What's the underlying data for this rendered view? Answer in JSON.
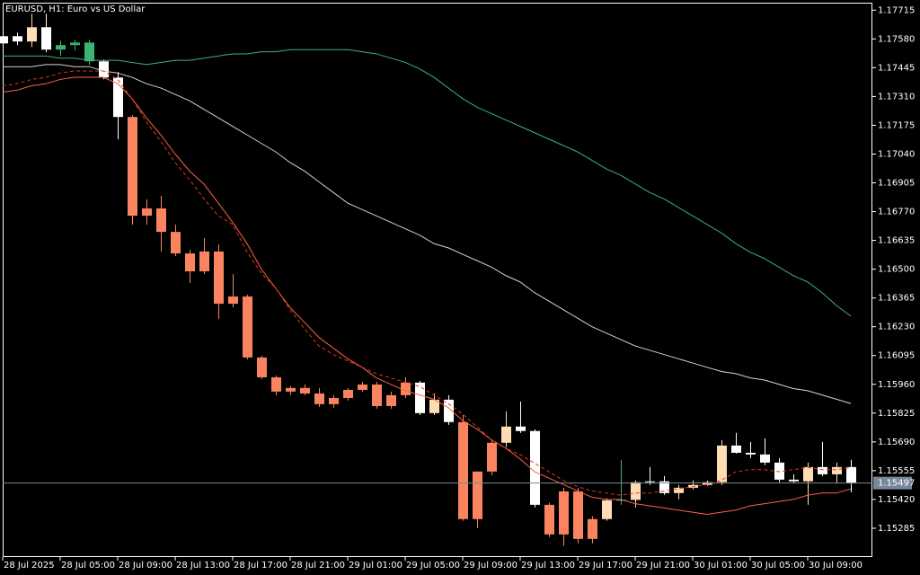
{
  "chart_data": {
    "type": "candlestick",
    "title": "EURUSD, H1:  Euro vs US Dollar",
    "categories": [
      "28 Jul 2025",
      null,
      null,
      null,
      "28 Jul 05:00",
      null,
      null,
      null,
      "28 Jul 09:00",
      null,
      null,
      null,
      "28 Jul 13:00",
      null,
      null,
      null,
      "28 Jul 17:00",
      null,
      null,
      null,
      "28 Jul 21:00",
      null,
      null,
      null,
      "29 Jul 01:00",
      null,
      null,
      null,
      "29 Jul 05:00",
      null,
      null,
      null,
      "29 Jul 09:00",
      null,
      null,
      null,
      "29 Jul 13:00",
      null,
      null,
      null,
      "29 Jul 17:00",
      null,
      null,
      null,
      "29 Jul 21:00",
      null,
      null,
      null,
      "30 Jul 01:00",
      null,
      null,
      null,
      "30 Jul 05:00",
      null,
      null,
      null,
      "30 Jul 09:00",
      null,
      null,
      null
    ],
    "open": [
      1.17559,
      1.17593,
      1.17568,
      1.17635,
      1.1753,
      1.17551,
      1.17563,
      1.17475,
      1.17399,
      1.17214,
      1.16751,
      1.16785,
      1.16675,
      1.16574,
      1.1649,
      1.16583,
      1.16338,
      1.16372,
      1.16086,
      1.15993,
      1.15926,
      1.15943,
      1.15917,
      1.15867,
      1.15896,
      1.15934,
      1.15959,
      1.15858,
      1.15909,
      1.15968,
      1.15825,
      1.15888,
      1.15783,
      1.15328,
      1.15551,
      1.15686,
      1.15762,
      1.15741,
      1.15395,
      1.15256,
      1.15458,
      1.15235,
      1.15328,
      1.15416,
      1.15418,
      1.15501,
      1.15505,
      1.1545,
      1.15475,
      1.15488,
      1.15501,
      1.15673,
      1.15639,
      1.15631,
      1.15593,
      1.15513,
      1.15505,
      1.15572,
      1.15538,
      1.15572
    ],
    "high": [
      1.17601,
      1.1761,
      1.17698,
      1.17698,
      1.17572,
      1.17576,
      1.17576,
      1.17483,
      1.17425,
      1.17222,
      1.16827,
      1.16844,
      1.16709,
      1.16591,
      1.16646,
      1.16616,
      1.16477,
      1.1638,
      1.16094,
      1.16002,
      1.15951,
      1.15959,
      1.15943,
      1.15909,
      1.15943,
      1.15972,
      1.15972,
      1.15926,
      1.15993,
      1.15976,
      1.15917,
      1.15909,
      1.15816,
      1.15551,
      1.15698,
      1.15833,
      1.15879,
      1.15749,
      1.15404,
      1.15475,
      1.15475,
      1.15341,
      1.15425,
      1.15606,
      1.15509,
      1.15572,
      1.1553,
      1.15488,
      1.15509,
      1.15509,
      1.15698,
      1.15732,
      1.1569,
      1.15707,
      1.15614,
      1.15538,
      1.15593,
      1.1569,
      1.15593,
      1.15606
    ],
    "low": [
      1.17542,
      1.17551,
      1.17542,
      1.17517,
      1.175,
      1.17526,
      1.17458,
      1.17391,
      1.17109,
      1.16709,
      1.16709,
      1.16583,
      1.16561,
      1.16435,
      1.16477,
      1.16267,
      1.16321,
      1.16077,
      1.15985,
      1.15909,
      1.15909,
      1.15909,
      1.15854,
      1.1585,
      1.15884,
      1.15926,
      1.15846,
      1.15846,
      1.15896,
      1.15816,
      1.15816,
      1.1577,
      1.1532,
      1.15286,
      1.15534,
      1.15665,
      1.15732,
      1.15383,
      1.15244,
      1.15202,
      1.15214,
      1.15214,
      1.1532,
      1.15395,
      1.15383,
      1.15488,
      1.15442,
      1.15421,
      1.15467,
      1.15484,
      1.15488,
      1.15635,
      1.15614,
      1.15581,
      1.15501,
      1.15496,
      1.15395,
      1.1553,
      1.15496,
      1.15454
    ],
    "close": [
      1.17593,
      1.17568,
      1.17635,
      1.1753,
      1.17551,
      1.17563,
      1.17475,
      1.17399,
      1.17214,
      1.16751,
      1.16785,
      1.16675,
      1.16574,
      1.1649,
      1.16583,
      1.16338,
      1.16372,
      1.16086,
      1.15993,
      1.15926,
      1.15943,
      1.15917,
      1.15867,
      1.15896,
      1.15934,
      1.15959,
      1.15858,
      1.15909,
      1.15968,
      1.15825,
      1.15888,
      1.15783,
      1.15328,
      1.15551,
      1.15686,
      1.15762,
      1.15741,
      1.15395,
      1.15256,
      1.15458,
      1.15235,
      1.15328,
      1.15416,
      1.15418,
      1.15501,
      1.15505,
      1.1545,
      1.15475,
      1.15488,
      1.15501,
      1.15673,
      1.15639,
      1.15631,
      1.15593,
      1.15513,
      1.15505,
      1.15572,
      1.15538,
      1.15572,
      1.15497
    ],
    "candle_colors": [
      "#ffffff",
      "#ffffff",
      "#ffdcb4",
      "#ffffff",
      "#3cb371",
      "#3cb371",
      "#3cb371",
      "#ffffff",
      "#ffffff",
      "#fa8460",
      "#fa8460",
      "#fa8460",
      "#fa8460",
      "#fa8460",
      "#fa8460",
      "#fa8460",
      "#fa8460",
      "#fa8460",
      "#fa8460",
      "#fa8460",
      "#fa8460",
      "#fa8460",
      "#fa8460",
      "#fa8460",
      "#fa8460",
      "#fa8460",
      "#fa8460",
      "#fa8460",
      "#fa8460",
      "#ffffff",
      "#ffdcb4",
      "#ffffff",
      "#fa8460",
      "#fa8460",
      "#fa8460",
      "#ffdcb4",
      "#ffffff",
      "#ffffff",
      "#fa8460",
      "#fa8460",
      "#fa8460",
      "#fa8460",
      "#ffdcb4",
      "#3cb371",
      "#ffdcb4",
      "#ffffff",
      "#ffffff",
      "#ffdcb4",
      "#ffdcb4",
      "#ffdcb4",
      "#ffdcb4",
      "#ffffff",
      "#ffffff",
      "#ffffff",
      "#ffffff",
      "#ffffff",
      "#ffdcb4",
      "#ffffff",
      "#ffdcb4",
      "#ffffff"
    ],
    "series": [
      {
        "color": "#3cb371",
        "style": "solid",
        "values": [
          1.175,
          1.175,
          1.175,
          1.175,
          1.1749,
          1.1749,
          1.1748,
          1.1748,
          1.1748,
          1.1747,
          1.1746,
          1.1747,
          1.1748,
          1.1748,
          1.1749,
          1.175,
          1.1751,
          1.1751,
          1.1752,
          1.1752,
          1.1753,
          1.1753,
          1.1753,
          1.1753,
          1.1753,
          1.1752,
          1.1751,
          1.1749,
          1.1747,
          1.1744,
          1.174,
          1.1735,
          1.173,
          1.1726,
          1.1723,
          1.172,
          1.1717,
          1.1714,
          1.1711,
          1.1708,
          1.1705,
          1.1701,
          1.1697,
          1.1694,
          1.169,
          1.1686,
          1.1683,
          1.1679,
          1.1675,
          1.1671,
          1.1667,
          1.1662,
          1.1658,
          1.1655,
          1.1651,
          1.1647,
          1.1644,
          1.1639,
          1.1633,
          1.1628
        ]
      },
      {
        "color": "#d3d3d3",
        "style": "solid",
        "values": [
          1.1745,
          1.1745,
          1.1745,
          1.1746,
          1.1746,
          1.1745,
          1.1745,
          1.1743,
          1.1742,
          1.174,
          1.1737,
          1.1735,
          1.1732,
          1.1729,
          1.1725,
          1.1721,
          1.1717,
          1.1713,
          1.1709,
          1.1705,
          1.17,
          1.1696,
          1.1691,
          1.1686,
          1.1681,
          1.1678,
          1.1675,
          1.1672,
          1.1669,
          1.1666,
          1.1662,
          1.166,
          1.1657,
          1.1654,
          1.1651,
          1.1647,
          1.1644,
          1.1639,
          1.1635,
          1.1631,
          1.1627,
          1.1623,
          1.162,
          1.1617,
          1.1614,
          1.1612,
          1.161,
          1.1608,
          1.1606,
          1.1604,
          1.1602,
          1.1601,
          1.1599,
          1.1598,
          1.1596,
          1.1594,
          1.1593,
          1.1591,
          1.1589,
          1.1587
        ]
      },
      {
        "color": "#ff6347",
        "style": "solid",
        "values": [
          1.1733,
          1.1734,
          1.1736,
          1.1737,
          1.1739,
          1.174,
          1.174,
          1.174,
          1.1737,
          1.173,
          1.1721,
          1.1713,
          1.1704,
          1.1696,
          1.169,
          1.1681,
          1.1672,
          1.1662,
          1.165,
          1.1641,
          1.1632,
          1.1625,
          1.1618,
          1.1613,
          1.1608,
          1.1604,
          1.1599,
          1.1596,
          1.1593,
          1.1591,
          1.1589,
          1.1585,
          1.1579,
          1.1575,
          1.157,
          1.1566,
          1.1561,
          1.1555,
          1.1552,
          1.1549,
          1.1546,
          1.1543,
          1.1542,
          1.1542,
          1.154,
          1.1539,
          1.1538,
          1.1537,
          1.1536,
          1.1535,
          1.1536,
          1.1537,
          1.1539,
          1.154,
          1.1541,
          1.1542,
          1.1544,
          1.1545,
          1.1545,
          1.1547
        ]
      },
      {
        "color": "#e8321e",
        "style": "dashed",
        "values": [
          1.1736,
          1.1737,
          1.1739,
          1.174,
          1.1742,
          1.1743,
          1.1743,
          1.1743,
          1.1739,
          1.173,
          1.1719,
          1.171,
          1.17,
          1.1692,
          1.1683,
          1.1675,
          1.1671,
          1.1658,
          1.1648,
          1.1641,
          1.1631,
          1.1622,
          1.1614,
          1.161,
          1.1607,
          1.1604,
          1.1601,
          1.1599,
          1.1597,
          1.1595,
          1.1591,
          1.1587,
          1.1582,
          1.1576,
          1.157,
          1.1566,
          1.1563,
          1.1559,
          1.1555,
          1.1551,
          1.1548,
          1.1546,
          1.1545,
          1.1544,
          1.1545,
          1.1545,
          1.1546,
          1.1547,
          1.1548,
          1.1549,
          1.1551,
          1.1555,
          1.1556,
          1.1556,
          1.1555,
          1.1556,
          1.1557,
          1.1556,
          1.1556,
          1.1557
        ]
      }
    ],
    "current_price": 1.15497,
    "current_price_color": "#778899",
    "ylim": [
      1.1515,
      1.1775
    ],
    "yticks": [
      1.17715,
      {
        "value": 1.1758,
        "label": "1.17580"
      },
      1.17445,
      {
        "value": 1.1731,
        "label": "1.17310"
      },
      1.17175,
      {
        "value": 1.1704,
        "label": "1.17040"
      },
      1.16905,
      {
        "value": 1.1677,
        "label": "1.16770"
      },
      1.16635,
      {
        "value": 1.165,
        "label": "1.16500"
      },
      1.16365,
      {
        "value": 1.1623,
        "label": "1.16230"
      },
      1.16095,
      {
        "value": 1.1596,
        "label": "1.15960"
      },
      1.15825,
      {
        "value": 1.1569,
        "label": "1.15690"
      },
      1.15555,
      {
        "value": 1.1542,
        "label": "1.15420"
      },
      1.15285
    ],
    "grid": false
  }
}
